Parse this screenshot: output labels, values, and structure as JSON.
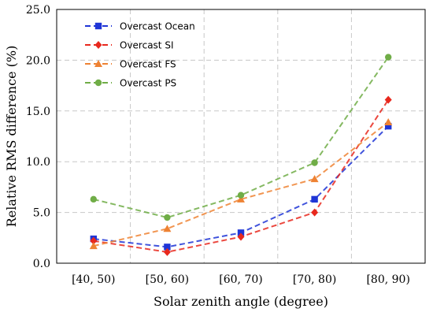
{
  "chart_data": {
    "type": "line",
    "xlabel": "Solar zenith angle (degree)",
    "ylabel": "Relative RMS difference (%)",
    "categories": [
      "[40, 50)",
      "[50, 60)",
      "[60, 70)",
      "[70, 80)",
      "[80, 90)"
    ],
    "ylim": [
      0,
      25
    ],
    "yticks": [
      "0.0",
      "5.0",
      "10.0",
      "15.0",
      "20.0",
      "25.0"
    ],
    "grid": true,
    "legend_position": "top-left",
    "series": [
      {
        "name": "Overcast Ocean",
        "color": "#1f35d6",
        "marker": "square",
        "values": [
          2.4,
          1.6,
          3.0,
          6.3,
          13.5
        ]
      },
      {
        "name": "Overcast SI",
        "color": "#e8281d",
        "marker": "diamond",
        "values": [
          2.2,
          1.1,
          2.6,
          5.0,
          16.1
        ]
      },
      {
        "name": "Overcast FS",
        "color": "#ee8233",
        "marker": "triangle",
        "values": [
          1.7,
          3.4,
          6.3,
          8.3,
          13.9
        ]
      },
      {
        "name": "Overcast PS",
        "color": "#70ad47",
        "marker": "circle",
        "values": [
          6.3,
          4.5,
          6.7,
          9.9,
          20.3
        ]
      }
    ]
  }
}
